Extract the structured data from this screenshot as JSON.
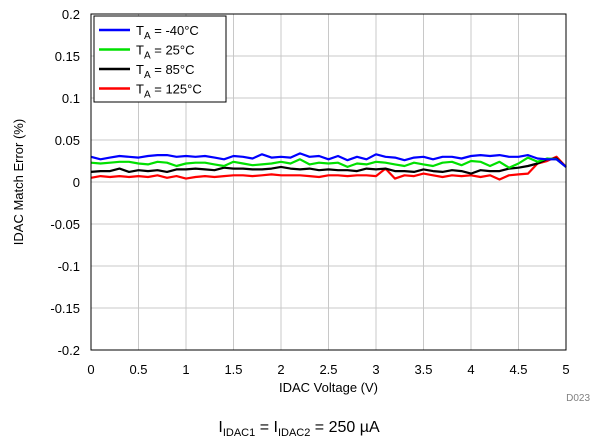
{
  "figure_id": "D023",
  "condition": {
    "i1_base": "I",
    "i1_sub": "IDAC1",
    "eq1": " = ",
    "i2_base": "I",
    "i2_sub": "IDAC2",
    "eq2": " = 250 µA"
  },
  "chart_data": {
    "type": "line",
    "title": "",
    "xlabel": "IDAC Voltage (V)",
    "ylabel": "IDAC Match Error (%)",
    "xlim": [
      0,
      5
    ],
    "ylim": [
      -0.2,
      0.2
    ],
    "x_ticks": [
      0,
      0.5,
      1,
      1.5,
      2,
      2.5,
      3,
      3.5,
      4,
      4.5,
      5
    ],
    "x_tick_labels": [
      "0",
      "0.5",
      "1",
      "1.5",
      "2",
      "2.5",
      "3",
      "3.5",
      "4",
      "4.5",
      "5"
    ],
    "y_ticks": [
      -0.2,
      -0.15,
      -0.1,
      -0.05,
      0,
      0.05,
      0.1,
      0.15,
      0.2
    ],
    "y_tick_labels": [
      "-0.2",
      "-0.15",
      "-0.1",
      "-0.05",
      "0",
      "0.05",
      "0.1",
      "0.15",
      "0.2"
    ],
    "grid": true,
    "legend_position": "top-left",
    "x": [
      0,
      0.1,
      0.2,
      0.3,
      0.4,
      0.5,
      0.6,
      0.7,
      0.8,
      0.9,
      1.0,
      1.1,
      1.2,
      1.3,
      1.4,
      1.5,
      1.6,
      1.7,
      1.8,
      1.9,
      2.0,
      2.1,
      2.2,
      2.3,
      2.4,
      2.5,
      2.6,
      2.7,
      2.8,
      2.9,
      3.0,
      3.1,
      3.2,
      3.3,
      3.4,
      3.5,
      3.6,
      3.7,
      3.8,
      3.9,
      4.0,
      4.1,
      4.2,
      4.3,
      4.4,
      4.5,
      4.6,
      4.7,
      4.8,
      4.9,
      5.0
    ],
    "series": [
      {
        "label_base": "T",
        "label_sub": "A",
        "label_rest": " = -40°C",
        "color": "#0000ff",
        "values": [
          0.03,
          0.027,
          0.029,
          0.031,
          0.03,
          0.029,
          0.031,
          0.032,
          0.032,
          0.03,
          0.031,
          0.03,
          0.031,
          0.029,
          0.027,
          0.031,
          0.03,
          0.028,
          0.033,
          0.029,
          0.03,
          0.029,
          0.034,
          0.03,
          0.031,
          0.027,
          0.031,
          0.026,
          0.03,
          0.027,
          0.033,
          0.03,
          0.029,
          0.026,
          0.029,
          0.03,
          0.027,
          0.03,
          0.03,
          0.028,
          0.031,
          0.032,
          0.031,
          0.032,
          0.03,
          0.03,
          0.032,
          0.028,
          0.027,
          0.027,
          0.018
        ]
      },
      {
        "label_base": "T",
        "label_sub": "A",
        "label_rest": " = 25°C",
        "color": "#00e000",
        "values": [
          0.023,
          0.022,
          0.023,
          0.024,
          0.024,
          0.022,
          0.021,
          0.024,
          0.023,
          0.019,
          0.022,
          0.023,
          0.023,
          0.021,
          0.019,
          0.024,
          0.022,
          0.02,
          0.021,
          0.022,
          0.024,
          0.022,
          0.027,
          0.021,
          0.023,
          0.022,
          0.023,
          0.018,
          0.022,
          0.021,
          0.024,
          0.023,
          0.021,
          0.019,
          0.023,
          0.021,
          0.019,
          0.023,
          0.024,
          0.02,
          0.025,
          0.024,
          0.019,
          0.024,
          0.017,
          0.022,
          0.029,
          0.024,
          0.028,
          0.027,
          0.018
        ]
      },
      {
        "label_base": "T",
        "label_sub": "A",
        "label_rest": " = 85°C",
        "color": "#000000",
        "values": [
          0.012,
          0.013,
          0.013,
          0.016,
          0.012,
          0.014,
          0.013,
          0.014,
          0.012,
          0.015,
          0.015,
          0.016,
          0.015,
          0.014,
          0.017,
          0.016,
          0.016,
          0.015,
          0.015,
          0.016,
          0.018,
          0.016,
          0.015,
          0.016,
          0.014,
          0.015,
          0.014,
          0.014,
          0.013,
          0.016,
          0.015,
          0.016,
          0.013,
          0.013,
          0.012,
          0.015,
          0.013,
          0.012,
          0.014,
          0.013,
          0.01,
          0.014,
          0.013,
          0.013,
          0.016,
          0.017,
          0.019,
          0.022,
          0.027,
          0.028,
          0.018
        ]
      },
      {
        "label_base": "T",
        "label_sub": "A",
        "label_rest": " = 125°C",
        "color": "#ff0000",
        "values": [
          0.005,
          0.007,
          0.006,
          0.007,
          0.006,
          0.007,
          0.006,
          0.008,
          0.005,
          0.007,
          0.004,
          0.006,
          0.007,
          0.006,
          0.007,
          0.008,
          0.008,
          0.007,
          0.008,
          0.009,
          0.008,
          0.008,
          0.008,
          0.007,
          0.006,
          0.008,
          0.008,
          0.007,
          0.008,
          0.008,
          0.007,
          0.016,
          0.004,
          0.008,
          0.007,
          0.01,
          0.008,
          0.006,
          0.008,
          0.007,
          0.008,
          0.006,
          0.008,
          0.003,
          0.008,
          0.009,
          0.01,
          0.022,
          0.025,
          0.03,
          0.018
        ]
      }
    ]
  }
}
